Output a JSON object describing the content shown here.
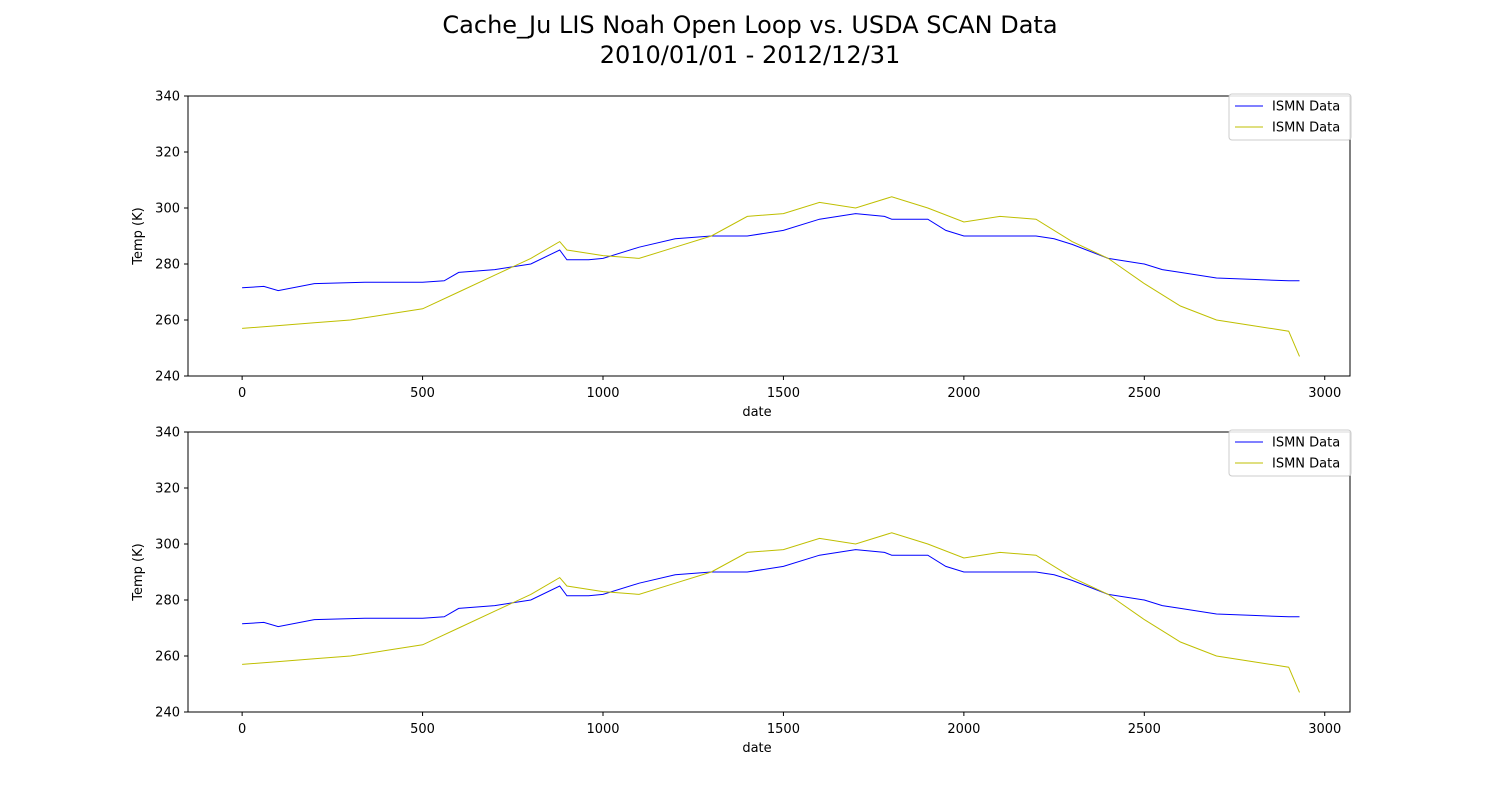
{
  "figure": {
    "title_line1": "Cache_Ju LIS Noah Open Loop vs. USDA SCAN Data",
    "title_line2": "2010/01/01 - 2012/12/31"
  },
  "colors": {
    "series_blue": "#0000ff",
    "series_yellow": "#bfbf00",
    "axis": "#000000",
    "legend_border": "#cccccc"
  },
  "chart_data": [
    {
      "type": "line",
      "xlabel": "date",
      "ylabel": "Temp (K)",
      "xlim": [
        -150,
        3070
      ],
      "ylim": [
        240,
        340
      ],
      "xticks": [
        0,
        500,
        1000,
        1500,
        2000,
        2500,
        3000
      ],
      "yticks": [
        240,
        260,
        280,
        300,
        320,
        340
      ],
      "grid": false,
      "legend_position": "top-right",
      "series": [
        {
          "name": "ISMN Data",
          "color": "#0000ff",
          "x": [
            0,
            60,
            100,
            200,
            340,
            500,
            560,
            600,
            700,
            800,
            880,
            900,
            960,
            1000,
            1100,
            1200,
            1300,
            1400,
            1500,
            1600,
            1700,
            1780,
            1800,
            1900,
            1950,
            2000,
            2100,
            2200,
            2250,
            2300,
            2400,
            2500,
            2550,
            2600,
            2700,
            2800,
            2900,
            2930
          ],
          "y": [
            271.5,
            272,
            270.5,
            273,
            273.5,
            273.5,
            274,
            277,
            278,
            280,
            285,
            281.5,
            281.5,
            282,
            286,
            289,
            290,
            290,
            292,
            296,
            298,
            297,
            296,
            296,
            292,
            290,
            290,
            290,
            289,
            287,
            282,
            280,
            278,
            277,
            275,
            274.5,
            274,
            274
          ]
        },
        {
          "name": "ISMN Data",
          "color": "#bfbf00",
          "x": [
            0,
            100,
            200,
            300,
            400,
            500,
            600,
            700,
            800,
            880,
            900,
            1000,
            1100,
            1200,
            1300,
            1400,
            1500,
            1600,
            1700,
            1800,
            1900,
            2000,
            2100,
            2200,
            2300,
            2400,
            2500,
            2600,
            2700,
            2800,
            2900,
            2930
          ],
          "y": [
            257,
            258,
            259,
            260,
            262,
            264,
            270,
            276,
            282,
            288,
            285,
            283,
            282,
            286,
            290,
            297,
            298,
            302,
            300,
            304,
            300,
            295,
            297,
            296,
            288,
            282,
            273,
            265,
            260,
            258,
            256,
            247
          ]
        }
      ]
    },
    {
      "type": "line",
      "xlabel": "date",
      "ylabel": "Temp (K)",
      "xlim": [
        -150,
        3070
      ],
      "ylim": [
        240,
        340
      ],
      "xticks": [
        0,
        500,
        1000,
        1500,
        2000,
        2500,
        3000
      ],
      "yticks": [
        240,
        260,
        280,
        300,
        320,
        340
      ],
      "grid": false,
      "legend_position": "top-right",
      "series": [
        {
          "name": "ISMN Data",
          "color": "#0000ff",
          "x": [
            0,
            60,
            100,
            200,
            340,
            500,
            560,
            600,
            700,
            800,
            880,
            900,
            960,
            1000,
            1100,
            1200,
            1300,
            1400,
            1500,
            1600,
            1700,
            1780,
            1800,
            1900,
            1950,
            2000,
            2100,
            2200,
            2250,
            2300,
            2400,
            2500,
            2550,
            2600,
            2700,
            2800,
            2900,
            2930
          ],
          "y": [
            271.5,
            272,
            270.5,
            273,
            273.5,
            273.5,
            274,
            277,
            278,
            280,
            285,
            281.5,
            281.5,
            282,
            286,
            289,
            290,
            290,
            292,
            296,
            298,
            297,
            296,
            296,
            292,
            290,
            290,
            290,
            289,
            287,
            282,
            280,
            278,
            277,
            275,
            274.5,
            274,
            274
          ]
        },
        {
          "name": "ISMN Data",
          "color": "#bfbf00",
          "x": [
            0,
            100,
            200,
            300,
            400,
            500,
            600,
            700,
            800,
            880,
            900,
            1000,
            1100,
            1200,
            1300,
            1400,
            1500,
            1600,
            1700,
            1800,
            1900,
            2000,
            2100,
            2200,
            2300,
            2400,
            2500,
            2600,
            2700,
            2800,
            2900,
            2930
          ],
          "y": [
            257,
            258,
            259,
            260,
            262,
            264,
            270,
            276,
            282,
            288,
            285,
            283,
            282,
            286,
            290,
            297,
            298,
            302,
            300,
            304,
            300,
            295,
            297,
            296,
            288,
            282,
            273,
            265,
            260,
            258,
            256,
            247
          ]
        }
      ]
    }
  ]
}
